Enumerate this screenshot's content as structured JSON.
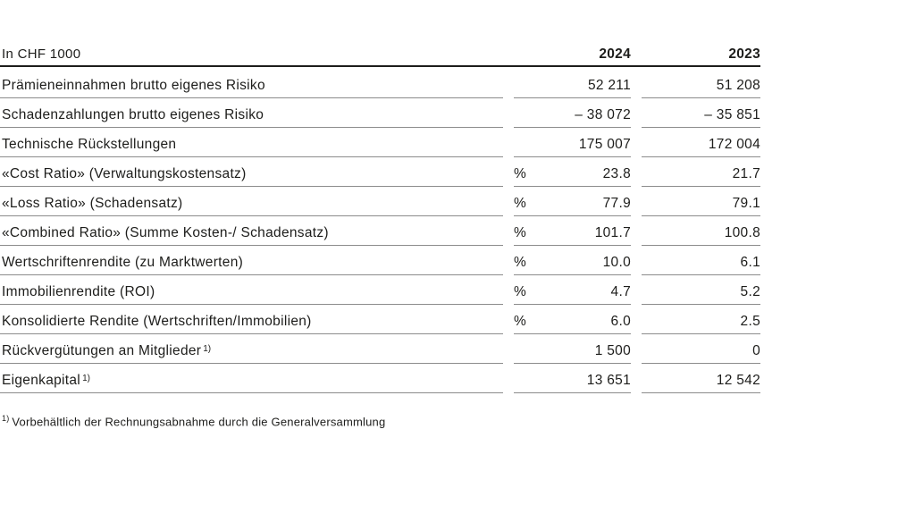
{
  "table": {
    "unit_header": "In CHF 1000",
    "columns": {
      "y2024": "2024",
      "y2023": "2023"
    },
    "rows": [
      {
        "label": "Prämieneinnahmen brutto eigenes Risiko",
        "sup": "",
        "unit": "",
        "v2024": "52 211",
        "v2023": "51 208"
      },
      {
        "label": "Schadenzahlungen brutto eigenes Risiko",
        "sup": "",
        "unit": "",
        "v2024": "– 38 072",
        "v2023": "– 35 851"
      },
      {
        "label": "Technische Rückstellungen",
        "sup": "",
        "unit": "",
        "v2024": "175 007",
        "v2023": "172 004"
      },
      {
        "label": "«Cost Ratio» (Verwaltungskostensatz)",
        "sup": "",
        "unit": "%",
        "v2024": "23.8",
        "v2023": "21.7"
      },
      {
        "label": "«Loss Ratio» (Schadensatz)",
        "sup": "",
        "unit": "%",
        "v2024": "77.9",
        "v2023": "79.1"
      },
      {
        "label": "«Combined Ratio» (Summe Kosten-/ Schadensatz)",
        "sup": "",
        "unit": "%",
        "v2024": "101.7",
        "v2023": "100.8"
      },
      {
        "label": "Wertschriftenrendite (zu Marktwerten)",
        "sup": "",
        "unit": "%",
        "v2024": "10.0",
        "v2023": "6.1"
      },
      {
        "label": "Immobilienrendite (ROI)",
        "sup": "",
        "unit": "%",
        "v2024": "4.7",
        "v2023": "5.2"
      },
      {
        "label": "Konsolidierte Rendite (Wertschriften/Immobilien)",
        "sup": "",
        "unit": "%",
        "v2024": "6.0",
        "v2023": "2.5"
      },
      {
        "label": "Rückvergütungen an Mitglieder",
        "sup": "1)",
        "unit": "",
        "v2024": "1 500",
        "v2023": "0"
      },
      {
        "label": "Eigenkapital",
        "sup": "1)",
        "unit": "",
        "v2024": "13 651",
        "v2023": "12 542"
      }
    ],
    "footnote": {
      "marker": "1)",
      "text": "Vorbehältlich der Rechnungsabnahme durch die Generalversammlung"
    },
    "colors": {
      "background": "#ffffff",
      "text": "#1d1d1b",
      "header_line": "#1d1d1b",
      "row_line": "#8c8c8c"
    }
  }
}
